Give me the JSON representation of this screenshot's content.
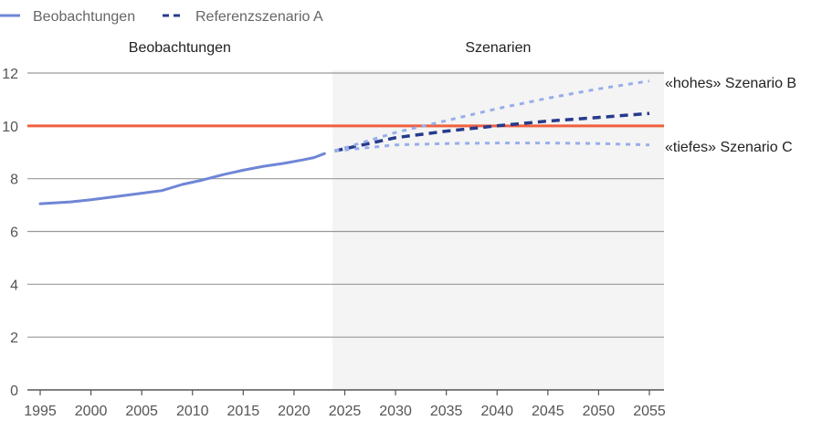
{
  "chart_data": {
    "type": "line",
    "title": "",
    "xlabel": "",
    "ylabel": "",
    "xlim": [
      1993.7,
      2056.4
    ],
    "ylim": [
      0,
      12
    ],
    "grid": "horizontal",
    "legend_position": "top-left",
    "x_ticks": [
      1995,
      2000,
      2005,
      2010,
      2015,
      2020,
      2025,
      2030,
      2035,
      2040,
      2045,
      2050,
      2055
    ],
    "y_ticks": [
      0,
      2,
      4,
      6,
      8,
      10,
      12
    ],
    "sections": [
      {
        "label": "Beobachtungen",
        "from": 1993.7,
        "to": 2023.8,
        "shaded": false
      },
      {
        "label": "Szenarien",
        "from": 2023.8,
        "to": 2056.4,
        "shaded": true
      }
    ],
    "reference_line": {
      "y": 10,
      "color": "#f0603f"
    },
    "legend": [
      {
        "name": "Beobachtungen",
        "style": "solid",
        "color": "#6f86d6"
      },
      {
        "name": "Referenzszenario A",
        "style": "dashed",
        "color": "#263a8c"
      }
    ],
    "series": [
      {
        "name": "Beobachtungen",
        "style": "solid",
        "color": "#6f86d6",
        "x": [
          1995,
          1998,
          2000,
          2003,
          2005,
          2007,
          2009,
          2011,
          2013,
          2015,
          2017,
          2019,
          2021,
          2022,
          2023
        ],
        "y": [
          7.05,
          7.12,
          7.2,
          7.35,
          7.45,
          7.55,
          7.78,
          7.95,
          8.15,
          8.32,
          8.47,
          8.58,
          8.72,
          8.8,
          8.95
        ]
      },
      {
        "name": "Referenzszenario A",
        "style": "dashed",
        "color": "#263a8c",
        "x": [
          2024,
          2030,
          2035,
          2040,
          2045,
          2050,
          2055
        ],
        "y": [
          9.05,
          9.55,
          9.8,
          10.0,
          10.18,
          10.32,
          10.47
        ]
      },
      {
        "name": "Szenario B",
        "label": "«hohes»  Szenario B",
        "style": "dotted",
        "color": "#97aeea",
        "x": [
          2024,
          2030,
          2035,
          2040,
          2045,
          2050,
          2055
        ],
        "y": [
          9.05,
          9.75,
          10.2,
          10.65,
          11.05,
          11.4,
          11.7
        ]
      },
      {
        "name": "Szenario C",
        "label": "«tiefes»  Szenario C",
        "style": "dotted",
        "color": "#97aeea",
        "x": [
          2024,
          2030,
          2035,
          2040,
          2045,
          2050,
          2055
        ],
        "y": [
          9.05,
          9.28,
          9.33,
          9.35,
          9.35,
          9.33,
          9.28
        ]
      }
    ]
  }
}
